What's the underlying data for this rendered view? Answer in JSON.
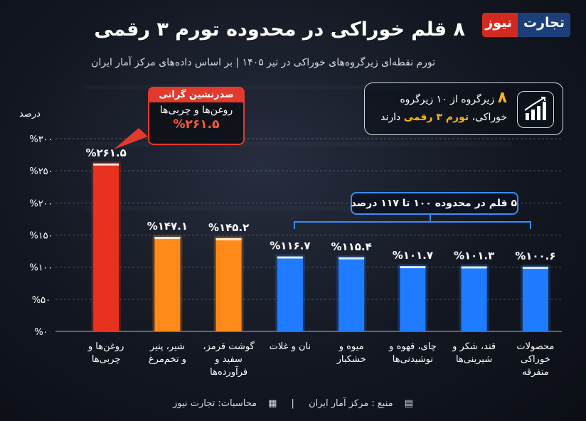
{
  "header": {
    "title": "۸ قلم خوراکی در محدوده تورم ۳ رقمی",
    "subtitle": "تورم نقطه‌ای زیرگروه‌های خوراکی در تیر ۱۴۰۵ | بر اساس داده‌های مرکز آمار ایران",
    "logo_part1": "تجارت",
    "logo_part2": "نیوز"
  },
  "info_box": {
    "number": "۸",
    "line1": "زیرگروه از ۱۰ زیرگروه",
    "line2_pre": "خوراکی،",
    "line2_highlight": "تورم ۳ رقمی",
    "line2_post": "دارند"
  },
  "callout": {
    "header": "صدرنشین گرانی",
    "subject": "روغن‌ها و چربی‌ها",
    "value": "%۲۶۱.۵"
  },
  "group_label": "۵ قلم در محدوده ۱۰۰ تا ۱۱۷ درصد",
  "footer": {
    "source": "منبع : مرکز آمار ایران",
    "calc": "محاسبات: تجارت نیوز"
  },
  "colors": {
    "red": "#e8321f",
    "orange": "#ff8a1a",
    "blue": "#1f7bff",
    "accent": "#ffb21d"
  },
  "chart_data": {
    "type": "bar",
    "ylabel": "درصد",
    "ylim": [
      0,
      300
    ],
    "yticks": [
      0,
      50,
      100,
      150,
      200,
      250,
      300
    ],
    "ytick_labels": [
      "%۰",
      "%۵۰",
      "%۱۰۰",
      "%۱۵۰",
      "%۲۰۰",
      "%۲۵۰",
      "%۳۰۰"
    ],
    "grid": true,
    "categories": [
      [
        "روغن‌ها و",
        "چربی‌ها"
      ],
      [
        "شیر، پنیر",
        "و تخم‌مرغ"
      ],
      [
        "گوشت قرمز،",
        "سفید و",
        "فرآورده‌ها"
      ],
      [
        "نان و غلات"
      ],
      [
        "میوه و",
        "خشکبار"
      ],
      [
        "چای، قهوه و",
        "نوشیدنی‌ها"
      ],
      [
        "قند، شکر و",
        "شیرینی‌ها"
      ],
      [
        "محصولات",
        "خوراکی",
        "متفرقه"
      ]
    ],
    "values": [
      261.5,
      147.1,
      145.2,
      116.7,
      115.4,
      101.7,
      101.3,
      100.6
    ],
    "value_labels": [
      "%۲۶۱.۵",
      "%۱۴۷.۱",
      "%۱۴۵.۲",
      "%۱۱۶.۷",
      "%۱۱۵.۴",
      "%۱۰۱.۷",
      "%۱۰۱.۳",
      "%۱۰۰.۶"
    ],
    "bar_colors": [
      "red",
      "orange",
      "orange",
      "blue",
      "blue",
      "blue",
      "blue",
      "blue"
    ]
  }
}
